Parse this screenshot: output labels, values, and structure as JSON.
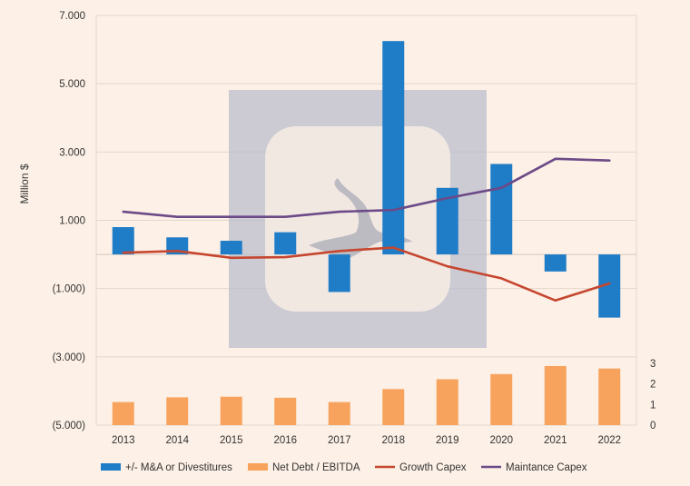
{
  "chart_data": {
    "type": "combo",
    "title": "",
    "ylabel": "Million $",
    "xlabel": "",
    "categories": [
      "2013",
      "2014",
      "2015",
      "2016",
      "2017",
      "2018",
      "2019",
      "2020",
      "2021",
      "2022"
    ],
    "primary_axis": {
      "range": [
        -5000,
        7000
      ],
      "ticks": [
        7000,
        5000,
        3000,
        1000,
        -1000,
        -3000,
        -5000
      ],
      "tick_labels": [
        "7.000",
        "5.000",
        "3.000",
        "1.000",
        "(1.000)",
        "(3.000)",
        "(5.000)"
      ]
    },
    "secondary_axis": {
      "range": [
        0,
        3
      ],
      "ticks": [
        3,
        2,
        1,
        0
      ],
      "tick_labels": [
        "3",
        "2",
        "1",
        "0"
      ]
    },
    "series": [
      {
        "name": "+/- M&A or Divestitures",
        "kind": "bar",
        "axis": "primary",
        "color": "#1f7dc7",
        "values": [
          800,
          500,
          400,
          650,
          -1100,
          6250,
          1950,
          2650,
          -500,
          -1850
        ]
      },
      {
        "name": "Net Debt / EBITDA",
        "kind": "bar",
        "axis": "secondary",
        "color": "#f8a35d",
        "values": [
          1.12,
          1.35,
          1.38,
          1.33,
          1.12,
          1.75,
          2.23,
          2.48,
          2.87,
          2.75
        ]
      },
      {
        "name": "Growth Capex",
        "kind": "line",
        "axis": "primary",
        "color": "#c6462f",
        "values": [
          50,
          100,
          -100,
          -80,
          100,
          200,
          -350,
          -700,
          -1350,
          -850
        ]
      },
      {
        "name": "Maintance Capex",
        "kind": "line",
        "axis": "primary",
        "color": "#6b4a87",
        "values": [
          1250,
          1100,
          1100,
          1100,
          1250,
          1300,
          1650,
          1950,
          2800,
          2750
        ]
      }
    ],
    "grid": true,
    "legend_position": "bottom"
  }
}
